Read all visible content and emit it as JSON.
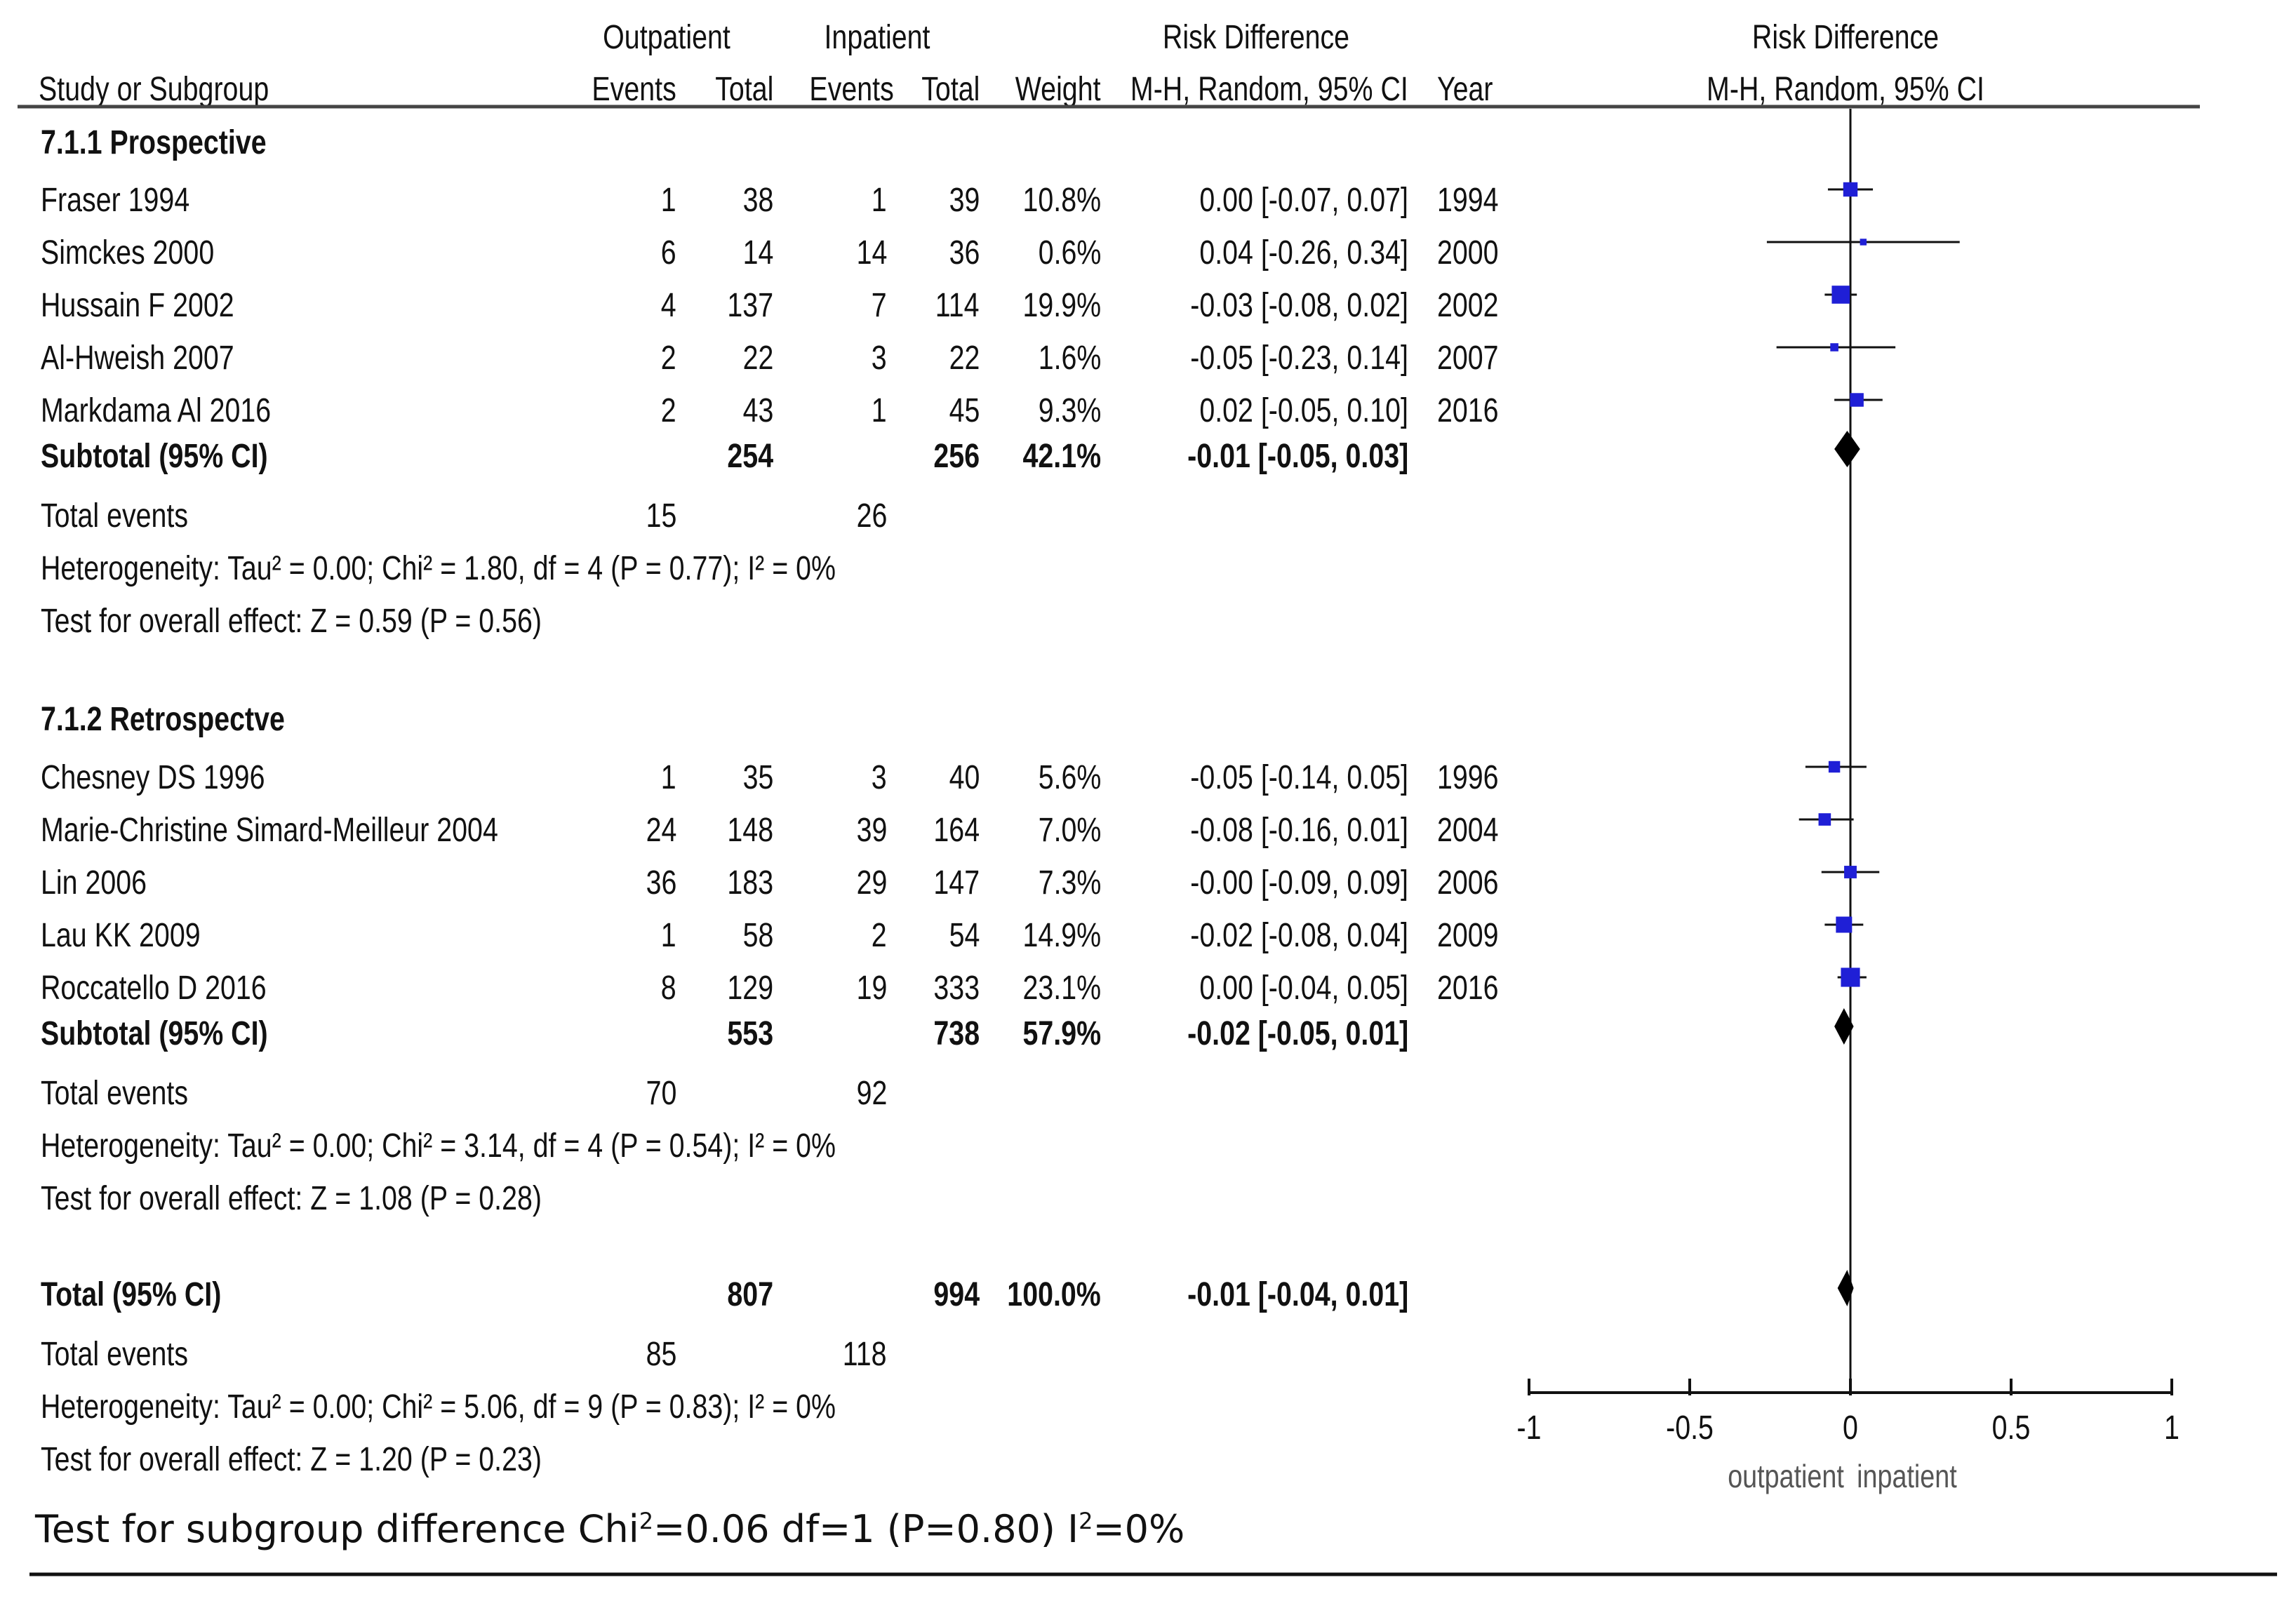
{
  "headers": {
    "study": "Study or Subgroup",
    "group1": "Outpatient",
    "group2": "Inpatient",
    "events": "Events",
    "total": "Total",
    "weight": "Weight",
    "effect_title": "Risk Difference",
    "effect_method": "M-H, Random, 95% CI",
    "year": "Year",
    "plot_title": "Risk Difference",
    "plot_method": "M-H, Random, 95% CI"
  },
  "subgroups": [
    {
      "title": "7.1.1 Prospective",
      "studies": [
        {
          "name": "Fraser 1994",
          "e1": "1",
          "n1": "38",
          "e2": "1",
          "n2": "39",
          "weight": "10.8%",
          "ci": "0.00 [-0.07, 0.07]",
          "year": "1994"
        },
        {
          "name": "Simckes 2000",
          "e1": "6",
          "n1": "14",
          "e2": "14",
          "n2": "36",
          "weight": "0.6%",
          "ci": "0.04 [-0.26, 0.34]",
          "year": "2000"
        },
        {
          "name": "Hussain F  2002",
          "e1": "4",
          "n1": "137",
          "e2": "7",
          "n2": "114",
          "weight": "19.9%",
          "ci": "-0.03 [-0.08, 0.02]",
          "year": "2002"
        },
        {
          "name": "Al-Hweish 2007",
          "e1": "2",
          "n1": "22",
          "e2": "3",
          "n2": "22",
          "weight": "1.6%",
          "ci": "-0.05 [-0.23, 0.14]",
          "year": "2007"
        },
        {
          "name": "Markdama Al 2016",
          "e1": "2",
          "n1": "43",
          "e2": "1",
          "n2": "45",
          "weight": "9.3%",
          "ci": "0.02 [-0.05, 0.10]",
          "year": "2016"
        }
      ],
      "subtotal": {
        "label": "Subtotal (95% CI)",
        "n1": "254",
        "n2": "256",
        "weight": "42.1%",
        "ci": "-0.01 [-0.05, 0.03]"
      },
      "total_events": {
        "label": "Total events",
        "e1": "15",
        "e2": "26"
      },
      "heterogeneity": "Heterogeneity: Tau² = 0.00; Chi² = 1.80, df = 4 (P = 0.77); I² = 0%",
      "overall": "Test for overall effect: Z = 0.59 (P = 0.56)"
    },
    {
      "title": "7.1.2 Retrospectve",
      "studies": [
        {
          "name": "Chesney DS 1996",
          "e1": "1",
          "n1": "35",
          "e2": "3",
          "n2": "40",
          "weight": "5.6%",
          "ci": "-0.05 [-0.14, 0.05]",
          "year": "1996"
        },
        {
          "name": "Marie-Christine Simard-Meilleur 2004",
          "e1": "24",
          "n1": "148",
          "e2": "39",
          "n2": "164",
          "weight": "7.0%",
          "ci": "-0.08 [-0.16, 0.01]",
          "year": "2004"
        },
        {
          "name": "Lin 2006",
          "e1": "36",
          "n1": "183",
          "e2": "29",
          "n2": "147",
          "weight": "7.3%",
          "ci": "-0.00 [-0.09, 0.09]",
          "year": "2006"
        },
        {
          "name": "Lau KK 2009",
          "e1": "1",
          "n1": "58",
          "e2": "2",
          "n2": "54",
          "weight": "14.9%",
          "ci": "-0.02 [-0.08, 0.04]",
          "year": "2009"
        },
        {
          "name": "Roccatello D 2016",
          "e1": "8",
          "n1": "129",
          "e2": "19",
          "n2": "333",
          "weight": "23.1%",
          "ci": "0.00 [-0.04, 0.05]",
          "year": "2016"
        }
      ],
      "subtotal": {
        "label": "Subtotal (95% CI)",
        "n1": "553",
        "n2": "738",
        "weight": "57.9%",
        "ci": "-0.02 [-0.05, 0.01]"
      },
      "total_events": {
        "label": "Total events",
        "e1": "70",
        "e2": "92"
      },
      "heterogeneity": "Heterogeneity: Tau² = 0.00; Chi² = 3.14, df = 4 (P = 0.54); I² = 0%",
      "overall": "Test for overall effect: Z = 1.08 (P = 0.28)"
    }
  ],
  "total": {
    "label": "Total (95% CI)",
    "n1": "807",
    "n2": "994",
    "weight": "100.0%",
    "ci": "-0.01 [-0.04, 0.01]",
    "total_events": {
      "label": "Total events",
      "e1": "85",
      "e2": "118"
    },
    "heterogeneity": "Heterogeneity: Tau² = 0.00; Chi² = 5.06, df = 9 (P = 0.83); I² = 0%",
    "overall": "Test for overall effect: Z = 1.20 (P = 0.23)"
  },
  "footnote": {
    "prefix": "Test for subgroup difference Chi",
    "sup1": "2",
    "middle": "=0.06 df=1 (P=0.80) I",
    "sup2": "2",
    "suffix": "=0%"
  },
  "colors": {
    "marker": "#1f1fd6",
    "diamond": "#000000",
    "line": "#111111"
  },
  "chart_data": {
    "type": "forest",
    "title": "Risk Difference",
    "subtitle": "M-H, Random, 95% CI",
    "xlim": [
      -1,
      1
    ],
    "xticks": [
      -1,
      -0.5,
      0,
      0.5,
      1
    ],
    "xtick_labels": [
      "-1",
      "-0.5",
      "0",
      "0.5",
      "1"
    ],
    "xlabel_left": "outpatient",
    "xlabel_right": "inpatient",
    "studies": [
      {
        "name": "Fraser 1994",
        "est": 0.0,
        "lo": -0.07,
        "hi": 0.07,
        "weight": 10.8
      },
      {
        "name": "Simckes 2000",
        "est": 0.04,
        "lo": -0.26,
        "hi": 0.34,
        "weight": 0.6
      },
      {
        "name": "Hussain F  2002",
        "est": -0.03,
        "lo": -0.08,
        "hi": 0.02,
        "weight": 19.9
      },
      {
        "name": "Al-Hweish 2007",
        "est": -0.05,
        "lo": -0.23,
        "hi": 0.14,
        "weight": 1.6
      },
      {
        "name": "Markdama Al 2016",
        "est": 0.02,
        "lo": -0.05,
        "hi": 0.1,
        "weight": 9.3
      },
      {
        "name": "Chesney DS 1996",
        "est": -0.05,
        "lo": -0.14,
        "hi": 0.05,
        "weight": 5.6
      },
      {
        "name": "Marie-Christine Simard-Meilleur 2004",
        "est": -0.08,
        "lo": -0.16,
        "hi": 0.01,
        "weight": 7.0
      },
      {
        "name": "Lin 2006",
        "est": -0.0,
        "lo": -0.09,
        "hi": 0.09,
        "weight": 7.3
      },
      {
        "name": "Lau KK 2009",
        "est": -0.02,
        "lo": -0.08,
        "hi": 0.04,
        "weight": 14.9
      },
      {
        "name": "Roccatello D 2016",
        "est": 0.0,
        "lo": -0.04,
        "hi": 0.05,
        "weight": 23.1
      }
    ],
    "pooled": [
      {
        "name": "Subtotal Prospective",
        "est": -0.01,
        "lo": -0.05,
        "hi": 0.03
      },
      {
        "name": "Subtotal Retrospectve",
        "est": -0.02,
        "lo": -0.05,
        "hi": 0.01
      },
      {
        "name": "Total",
        "est": -0.01,
        "lo": -0.04,
        "hi": 0.01
      }
    ]
  }
}
